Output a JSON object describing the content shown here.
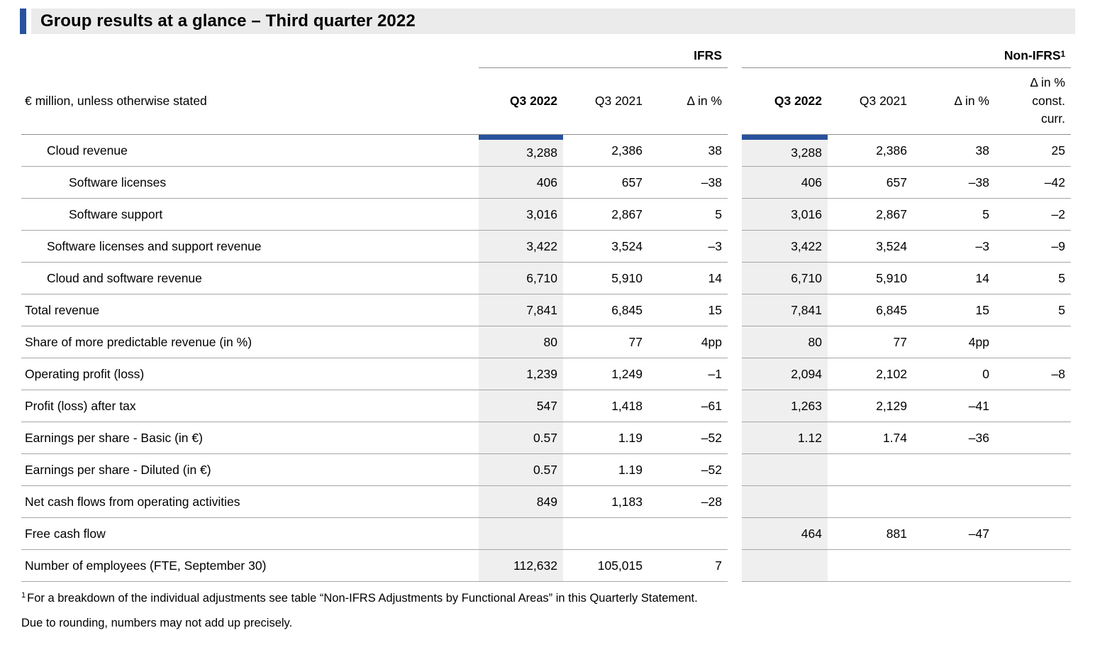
{
  "title": "Group results at a glance – Third quarter 2022",
  "table": {
    "unit_label": "€ million, unless otherwise stated",
    "ifrs_group": {
      "label": "IFRS",
      "columns": [
        "Q3 2022",
        "Q3 2021",
        "Δ in %"
      ]
    },
    "non_ifrs_group": {
      "label": "Non-IFRS",
      "sup": "1",
      "columns": [
        "Q3 2022",
        "Q3 2021",
        "Δ in %"
      ],
      "last_column_lines": [
        "Δ in %",
        "const.",
        "curr."
      ]
    },
    "rows": [
      {
        "label": "Cloud revenue",
        "indent": 1,
        "ifrs": [
          "3,288",
          "2,386",
          "38"
        ],
        "non_ifrs": [
          "3,288",
          "2,386",
          "38",
          "25"
        ]
      },
      {
        "label": "Software licenses",
        "indent": 2,
        "ifrs": [
          "406",
          "657",
          "–38"
        ],
        "non_ifrs": [
          "406",
          "657",
          "–38",
          "–42"
        ]
      },
      {
        "label": "Software support",
        "indent": 2,
        "ifrs": [
          "3,016",
          "2,867",
          "5"
        ],
        "non_ifrs": [
          "3,016",
          "2,867",
          "5",
          "–2"
        ]
      },
      {
        "label": "Software licenses and support revenue",
        "indent": 1,
        "ifrs": [
          "3,422",
          "3,524",
          "–3"
        ],
        "non_ifrs": [
          "3,422",
          "3,524",
          "–3",
          "–9"
        ]
      },
      {
        "label": "Cloud and software revenue",
        "indent": 1,
        "ifrs": [
          "6,710",
          "5,910",
          "14"
        ],
        "non_ifrs": [
          "6,710",
          "5,910",
          "14",
          "5"
        ]
      },
      {
        "label": "Total revenue",
        "indent": 0,
        "ifrs": [
          "7,841",
          "6,845",
          "15"
        ],
        "non_ifrs": [
          "7,841",
          "6,845",
          "15",
          "5"
        ]
      },
      {
        "label": "Share of more predictable revenue (in %)",
        "indent": 0,
        "ifrs": [
          "80",
          "77",
          "4pp"
        ],
        "non_ifrs": [
          "80",
          "77",
          "4pp",
          ""
        ]
      },
      {
        "label": "Operating profit (loss)",
        "indent": 0,
        "ifrs": [
          "1,239",
          "1,249",
          "–1"
        ],
        "non_ifrs": [
          "2,094",
          "2,102",
          "0",
          "–8"
        ]
      },
      {
        "label": "Profit (loss) after tax",
        "indent": 0,
        "ifrs": [
          "547",
          "1,418",
          "–61"
        ],
        "non_ifrs": [
          "1,263",
          "2,129",
          "–41",
          ""
        ]
      },
      {
        "label": "Earnings per share - Basic (in €)",
        "indent": 0,
        "ifrs": [
          "0.57",
          "1.19",
          "–52"
        ],
        "non_ifrs": [
          "1.12",
          "1.74",
          "–36",
          ""
        ]
      },
      {
        "label": "Earnings per share - Diluted (in €)",
        "indent": 0,
        "ifrs": [
          "0.57",
          "1.19",
          "–52"
        ],
        "non_ifrs": [
          "",
          "",
          "",
          ""
        ]
      },
      {
        "label": "Net cash flows from operating activities",
        "indent": 0,
        "ifrs": [
          "849",
          "1,183",
          "–28"
        ],
        "non_ifrs": [
          "",
          "",
          "",
          ""
        ]
      },
      {
        "label": "Free cash flow",
        "indent": 0,
        "ifrs": [
          "",
          "",
          ""
        ],
        "non_ifrs": [
          "464",
          "881",
          "–47",
          ""
        ]
      },
      {
        "label": "Number of employees (FTE, September 30)",
        "indent": 0,
        "ifrs": [
          "112,632",
          "105,015",
          "7"
        ],
        "non_ifrs": [
          "",
          "",
          "",
          ""
        ]
      }
    ]
  },
  "footnotes": [
    {
      "sup": "1",
      "text": "For a breakdown of the individual adjustments see table “Non-IFRS Adjustments by Functional Areas” in this Quarterly Statement."
    },
    {
      "sup": "",
      "text": "Due to rounding, numbers may not add up precisely."
    }
  ],
  "colors": {
    "accent_blue": "#28529e",
    "title_background": "#ebebeb",
    "highlight_column_background": "#efefef",
    "row_line": "#a6a6a6"
  }
}
